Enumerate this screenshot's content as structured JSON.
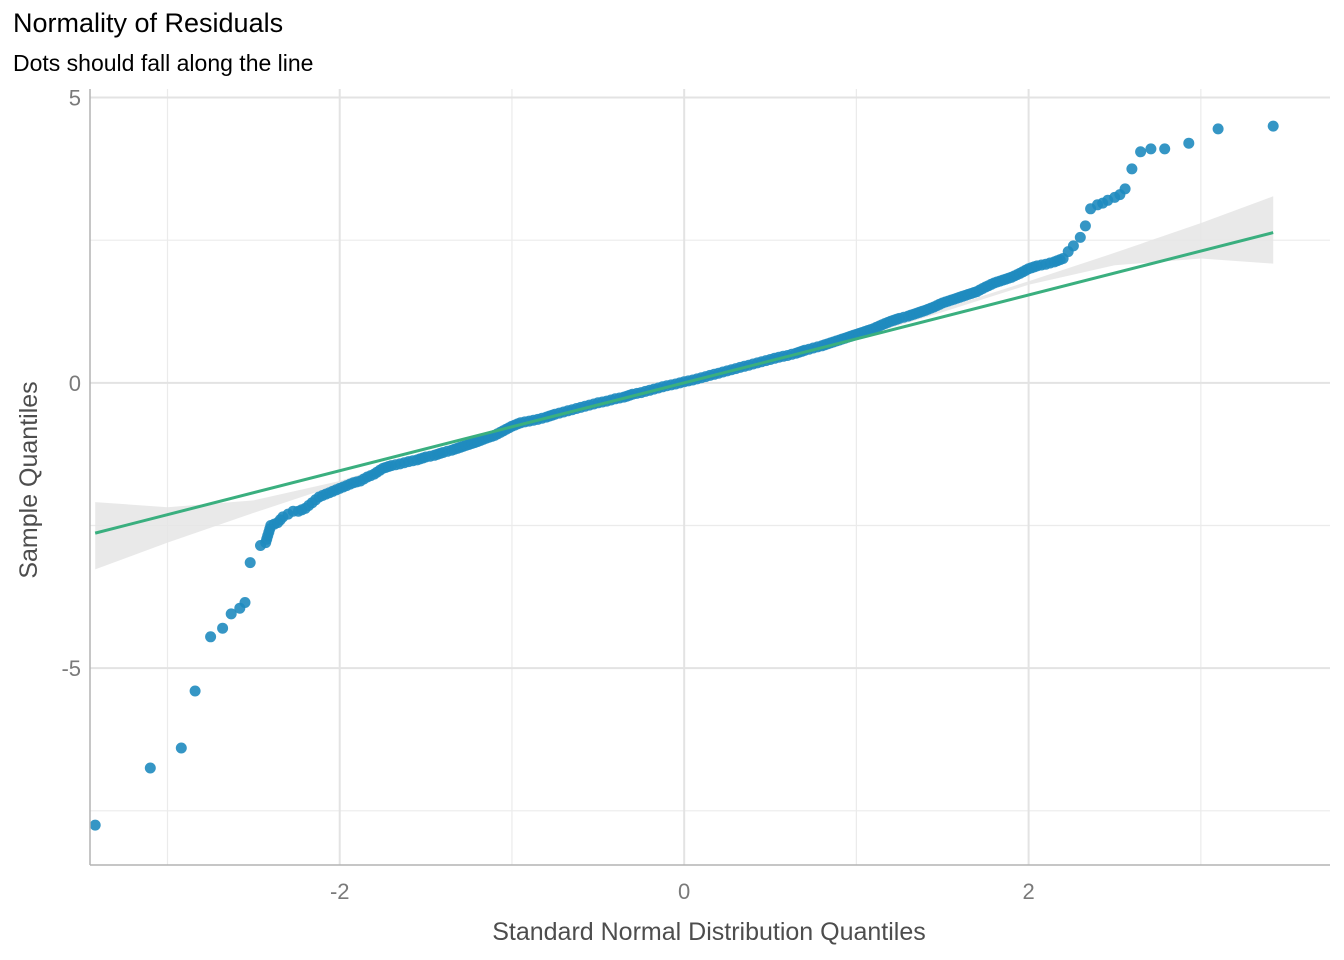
{
  "chart_data": {
    "type": "scatter",
    "title": "Normality of Residuals",
    "subtitle": "Dots should fall along the line",
    "xlabel": "Standard Normal Distribution Quantiles",
    "ylabel": "Sample Quantiles",
    "xlim": [
      -3.45,
      3.75
    ],
    "ylim": [
      -8.45,
      5.15
    ],
    "x_ticks": [
      -2,
      0,
      2
    ],
    "y_ticks": [
      -5,
      0,
      5
    ],
    "x_tick_labels": [
      "-2",
      "0",
      "2"
    ],
    "y_tick_labels": [
      "-5",
      "0",
      "5"
    ],
    "grid": true,
    "point_color": "#1f8bbf",
    "line_color": "#3aaf7f",
    "band_color": "#e5e5e5",
    "reference_line": {
      "slope": 0.77,
      "intercept": 0
    },
    "confidence_band": {
      "x": [
        -3.42,
        -3.0,
        -2.5,
        -2.0,
        -1.5,
        -1.0,
        -0.5,
        0,
        0.5,
        1.0,
        1.5,
        2.0,
        2.5,
        3.0,
        3.42
      ],
      "lower": [
        -3.27,
        -2.8,
        -2.28,
        -1.78,
        -1.3,
        -0.83,
        -0.39,
        -0.04,
        0.35,
        0.78,
        1.24,
        1.72,
        2.06,
        2.18,
        2.09
      ],
      "upper": [
        -2.09,
        -2.18,
        -2.06,
        -1.72,
        -1.24,
        -0.78,
        -0.35,
        0.04,
        0.39,
        0.83,
        1.3,
        1.78,
        2.28,
        2.8,
        3.27
      ]
    },
    "points": {
      "x": [
        -3.42,
        -3.1,
        -2.92,
        -2.84,
        -2.75,
        -2.68,
        -2.63,
        -2.58,
        -2.55,
        -2.52,
        -2.46,
        -2.43,
        -2.4,
        -2.36,
        -2.33,
        -2.3,
        -2.27,
        -2.24,
        -2.2,
        -2.16,
        -2.12,
        -2.08,
        -2.04,
        -2.0,
        -1.96,
        -1.92,
        -1.88,
        -1.84,
        -1.8,
        -1.75,
        -1.7,
        -1.65,
        -1.6,
        -1.55,
        -1.5,
        -1.45,
        -1.4,
        -1.35,
        -1.3,
        -1.25,
        -1.2,
        -1.15,
        -1.1,
        -1.05,
        -1.0,
        -0.95,
        -0.9,
        -0.85,
        -0.8,
        -0.75,
        -0.7,
        -0.65,
        -0.6,
        -0.55,
        -0.5,
        -0.45,
        -0.4,
        -0.35,
        -0.3,
        -0.25,
        -0.2,
        -0.15,
        -0.1,
        -0.05,
        0.0,
        0.05,
        0.1,
        0.15,
        0.2,
        0.25,
        0.3,
        0.35,
        0.4,
        0.45,
        0.5,
        0.55,
        0.6,
        0.65,
        0.7,
        0.75,
        0.8,
        0.85,
        0.9,
        0.95,
        1.0,
        1.05,
        1.1,
        1.15,
        1.2,
        1.25,
        1.3,
        1.35,
        1.4,
        1.45,
        1.5,
        1.55,
        1.6,
        1.65,
        1.7,
        1.75,
        1.8,
        1.85,
        1.9,
        1.95,
        2.0,
        2.05,
        2.1,
        2.15,
        2.2,
        2.23,
        2.26,
        2.3,
        2.33,
        2.36,
        2.4,
        2.43,
        2.46,
        2.5,
        2.53,
        2.56,
        2.6,
        2.65,
        2.71,
        2.79,
        2.93,
        3.1,
        3.42
      ],
      "y": [
        -7.75,
        -6.75,
        -6.4,
        -5.4,
        -4.45,
        -4.3,
        -4.05,
        -3.95,
        -3.85,
        -3.15,
        -2.85,
        -2.8,
        -2.5,
        -2.45,
        -2.35,
        -2.3,
        -2.25,
        -2.25,
        -2.2,
        -2.1,
        -2.0,
        -1.95,
        -1.9,
        -1.85,
        -1.8,
        -1.75,
        -1.72,
        -1.65,
        -1.6,
        -1.5,
        -1.45,
        -1.42,
        -1.38,
        -1.35,
        -1.3,
        -1.27,
        -1.22,
        -1.18,
        -1.13,
        -1.08,
        -1.03,
        -0.97,
        -0.92,
        -0.84,
        -0.76,
        -0.7,
        -0.67,
        -0.64,
        -0.6,
        -0.55,
        -0.51,
        -0.47,
        -0.43,
        -0.39,
        -0.35,
        -0.32,
        -0.28,
        -0.25,
        -0.2,
        -0.17,
        -0.13,
        -0.09,
        -0.05,
        -0.02,
        0.02,
        0.05,
        0.09,
        0.13,
        0.17,
        0.21,
        0.25,
        0.29,
        0.33,
        0.37,
        0.41,
        0.45,
        0.48,
        0.52,
        0.57,
        0.61,
        0.65,
        0.7,
        0.75,
        0.8,
        0.85,
        0.9,
        0.95,
        1.02,
        1.08,
        1.13,
        1.17,
        1.22,
        1.27,
        1.33,
        1.4,
        1.45,
        1.5,
        1.55,
        1.6,
        1.68,
        1.75,
        1.8,
        1.85,
        1.92,
        2.0,
        2.05,
        2.08,
        2.12,
        2.18,
        2.3,
        2.4,
        2.55,
        2.75,
        3.05,
        3.12,
        3.15,
        3.2,
        3.25,
        3.3,
        3.4,
        3.75,
        4.05,
        4.1,
        4.1,
        4.2,
        4.45,
        4.5
      ]
    }
  }
}
